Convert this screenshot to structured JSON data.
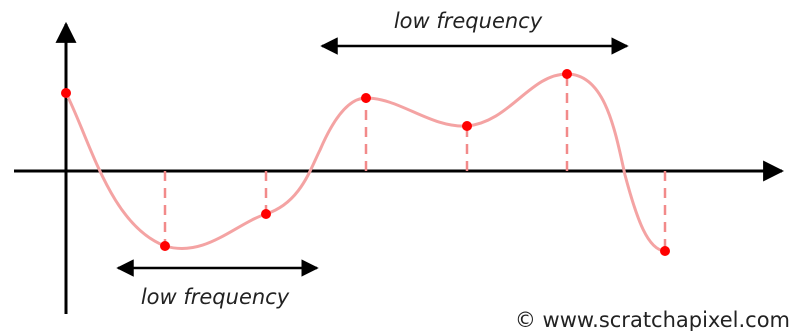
{
  "annotations": {
    "top_label": "low frequency",
    "bottom_label": "low frequency"
  },
  "credit": "© www.scratchapixel.com",
  "colors": {
    "curve": "#f4a3a3",
    "sample_point": "#ff0000",
    "sample_line": "#f28a8a",
    "axis": "#000000",
    "background": "#ffffff"
  }
}
